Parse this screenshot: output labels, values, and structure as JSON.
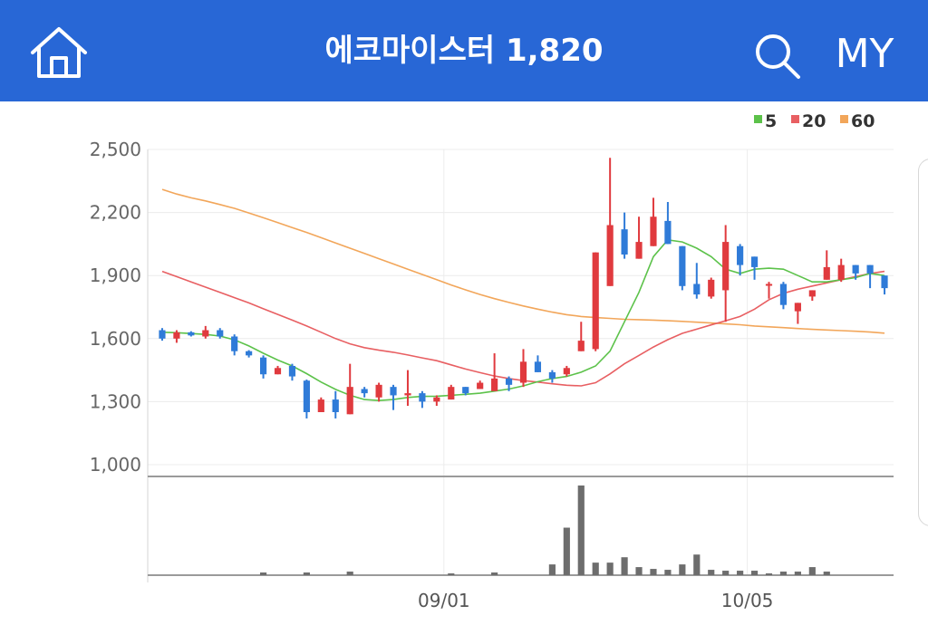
{
  "header": {
    "title": "에코마이스터 1,820",
    "home_icon": "home-icon",
    "search_icon": "search-icon",
    "my_label": "MY",
    "background_color": "#2867d6"
  },
  "chart_data": {
    "type": "candlestick",
    "title": "",
    "xlabel": "",
    "ylabel": "",
    "ylim": [
      1000,
      2500
    ],
    "y_ticks": [
      "2,500",
      "2,200",
      "1,900",
      "1,600",
      "1,300",
      "1,000"
    ],
    "x_tick_labels": [
      "09/01",
      "10/05"
    ],
    "x_tick_indices": [
      20,
      41
    ],
    "grid": true,
    "legend_position": "top-right",
    "colors": {
      "up": "#e03a3e",
      "down": "#2f7bd8",
      "ma5": "#5cc24a",
      "ma20": "#e85f62",
      "ma60": "#f2a65a",
      "volume": "#6d6d6d"
    },
    "legend": [
      {
        "label": "5",
        "color": "#5cc24a"
      },
      {
        "label": "20",
        "color": "#e85f62"
      },
      {
        "label": "60",
        "color": "#f2a65a"
      }
    ],
    "ohlc": [
      [
        1640,
        1650,
        1590,
        1600
      ],
      [
        1600,
        1640,
        1580,
        1630
      ],
      [
        1630,
        1635,
        1610,
        1615
      ],
      [
        1610,
        1660,
        1600,
        1640
      ],
      [
        1640,
        1650,
        1600,
        1610
      ],
      [
        1610,
        1620,
        1520,
        1540
      ],
      [
        1540,
        1545,
        1510,
        1520
      ],
      [
        1510,
        1520,
        1410,
        1430
      ],
      [
        1430,
        1470,
        1430,
        1460
      ],
      [
        1470,
        1480,
        1400,
        1420
      ],
      [
        1400,
        1405,
        1220,
        1250
      ],
      [
        1250,
        1320,
        1250,
        1310
      ],
      [
        1310,
        1350,
        1220,
        1250
      ],
      [
        1240,
        1480,
        1240,
        1370
      ],
      [
        1360,
        1370,
        1320,
        1340
      ],
      [
        1320,
        1390,
        1300,
        1380
      ],
      [
        1370,
        1380,
        1260,
        1330
      ],
      [
        1330,
        1450,
        1280,
        1340
      ],
      [
        1340,
        1350,
        1270,
        1300
      ],
      [
        1300,
        1330,
        1280,
        1320
      ],
      [
        1310,
        1380,
        1310,
        1370
      ],
      [
        1370,
        1370,
        1330,
        1340
      ],
      [
        1360,
        1400,
        1360,
        1390
      ],
      [
        1350,
        1530,
        1350,
        1410
      ],
      [
        1410,
        1420,
        1350,
        1380
      ],
      [
        1390,
        1550,
        1370,
        1490
      ],
      [
        1490,
        1520,
        1440,
        1440
      ],
      [
        1440,
        1450,
        1390,
        1410
      ],
      [
        1430,
        1470,
        1420,
        1460
      ],
      [
        1540,
        1680,
        1540,
        1590
      ],
      [
        1550,
        2010,
        1540,
        2010
      ],
      [
        1850,
        2460,
        1850,
        2140
      ],
      [
        2120,
        2200,
        1980,
        2000
      ],
      [
        1980,
        2180,
        1980,
        2060
      ],
      [
        2040,
        2270,
        2040,
        2180
      ],
      [
        2160,
        2250,
        2050,
        2050
      ],
      [
        2040,
        2040,
        1830,
        1850
      ],
      [
        1860,
        1960,
        1790,
        1810
      ],
      [
        1800,
        1890,
        1790,
        1880
      ],
      [
        1830,
        2140,
        1680,
        2060
      ],
      [
        2040,
        2050,
        1900,
        1950
      ],
      [
        1990,
        1990,
        1880,
        1940
      ],
      [
        1860,
        1870,
        1790,
        1860
      ],
      [
        1860,
        1870,
        1740,
        1760
      ],
      [
        1730,
        1770,
        1670,
        1770
      ],
      [
        1800,
        1830,
        1780,
        1830
      ],
      [
        1880,
        2020,
        1880,
        1940
      ],
      [
        1880,
        1980,
        1870,
        1950
      ],
      [
        1950,
        1950,
        1880,
        1910
      ],
      [
        1950,
        1950,
        1840,
        1910
      ],
      [
        1900,
        1900,
        1810,
        1840
      ]
    ],
    "ma5": [
      1630,
      1628,
      1624,
      1620,
      1612,
      1594,
      1565,
      1530,
      1498,
      1470,
      1433,
      1393,
      1358,
      1330,
      1310,
      1305,
      1310,
      1320,
      1325,
      1326,
      1330,
      1335,
      1340,
      1350,
      1360,
      1375,
      1395,
      1410,
      1420,
      1440,
      1470,
      1540,
      1680,
      1820,
      1990,
      2070,
      2060,
      2030,
      1990,
      1930,
      1910,
      1930,
      1935,
      1930,
      1900,
      1870,
      1870,
      1880,
      1890,
      1910,
      1900
    ],
    "ma20": [
      1920,
      1895,
      1870,
      1845,
      1820,
      1795,
      1770,
      1742,
      1715,
      1688,
      1660,
      1630,
      1600,
      1575,
      1557,
      1545,
      1535,
      1522,
      1508,
      1495,
      1475,
      1455,
      1438,
      1422,
      1410,
      1400,
      1393,
      1385,
      1378,
      1375,
      1390,
      1432,
      1480,
      1520,
      1560,
      1595,
      1625,
      1645,
      1665,
      1685,
      1705,
      1740,
      1785,
      1815,
      1835,
      1850,
      1865,
      1880,
      1895,
      1910,
      1920
    ],
    "ma60": [
      2310,
      2288,
      2270,
      2255,
      2238,
      2220,
      2198,
      2175,
      2152,
      2128,
      2105,
      2080,
      2055,
      2030,
      2005,
      1980,
      1955,
      1930,
      1905,
      1880,
      1855,
      1832,
      1810,
      1790,
      1772,
      1755,
      1740,
      1726,
      1714,
      1705,
      1700,
      1696,
      1692,
      1690,
      1688,
      1685,
      1682,
      1678,
      1674,
      1670,
      1666,
      1660,
      1656,
      1652,
      1648,
      1644,
      1641,
      1638,
      1635,
      1631,
      1626
    ],
    "volume": [
      0,
      0,
      0,
      0,
      0,
      0,
      0,
      3,
      0,
      0,
      3,
      0,
      0,
      4,
      0,
      0,
      0,
      0,
      0,
      0,
      2,
      0,
      0,
      3,
      0,
      0,
      0,
      12,
      53,
      100,
      14,
      14,
      20,
      9,
      7,
      6,
      12,
      23,
      6,
      5,
      5,
      5,
      2,
      4,
      4,
      9,
      4,
      0,
      0,
      0,
      0
    ]
  }
}
